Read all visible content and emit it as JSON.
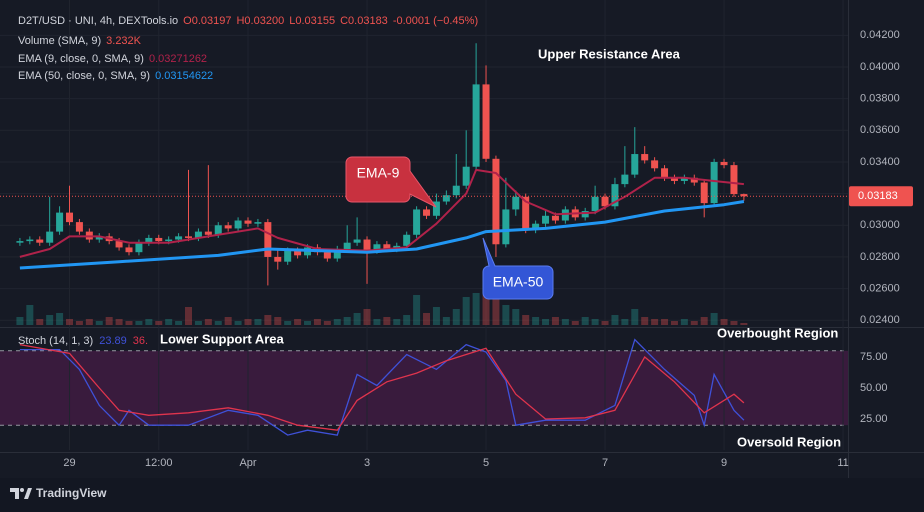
{
  "chart_data": [
    {
      "type": "candlestick",
      "title": "D2T/USD · UNI, 4h, DEXTools.io",
      "ohlc": [
        "O0.03197",
        "H0.03200",
        "L0.03155",
        "C0.03183",
        "-0.0001 (−0.45%)"
      ],
      "up_color": "#26a69a",
      "down_color": "#ef5350",
      "xlim": [
        -6,
        78.5
      ],
      "xticks": [
        {
          "value": 0,
          "label": "29"
        },
        {
          "value": 9,
          "label": "12:00"
        },
        {
          "value": 18,
          "label": "Apr"
        },
        {
          "value": 30,
          "label": "3"
        },
        {
          "value": 42,
          "label": "5"
        },
        {
          "value": 54,
          "label": "7"
        },
        {
          "value": 66,
          "label": "9"
        },
        {
          "value": 78,
          "label": "11"
        }
      ],
      "ylim": [
        0.0237,
        0.0436
      ],
      "yticks": [
        {
          "value": 0.024,
          "label": "0.02400"
        },
        {
          "value": 0.026,
          "label": "0.02600"
        },
        {
          "value": 0.028,
          "label": "0.02800"
        },
        {
          "value": 0.03,
          "label": "0.03000"
        },
        {
          "value": 0.032,
          "label": "0.03200"
        },
        {
          "value": 0.034,
          "label": "0.03400"
        },
        {
          "value": 0.036,
          "label": "0.03600"
        },
        {
          "value": 0.038,
          "label": "0.03800"
        },
        {
          "value": 0.04,
          "label": "0.04000"
        },
        {
          "value": 0.042,
          "label": "0.04200"
        }
      ],
      "grid": true,
      "x": [
        -5,
        -4,
        -3,
        -2,
        -1,
        0,
        1,
        2,
        3,
        4,
        5,
        6,
        7,
        8,
        9,
        10,
        11,
        12,
        13,
        14,
        15,
        16,
        17,
        18,
        19,
        20,
        21,
        22,
        23,
        24,
        25,
        26,
        27,
        28,
        29,
        30,
        31,
        32,
        33,
        34,
        35,
        36,
        37,
        38,
        39,
        40,
        41,
        42,
        43,
        44,
        45,
        46,
        47,
        48,
        49,
        50,
        51,
        52,
        53,
        54,
        55,
        56,
        57,
        58,
        59,
        60,
        61,
        62,
        63,
        64,
        65,
        66,
        67,
        68
      ],
      "open": [
        0.0289,
        0.029,
        0.0291,
        0.0289,
        0.0296,
        0.0308,
        0.0302,
        0.0296,
        0.0291,
        0.0293,
        0.029,
        0.0286,
        0.0283,
        0.0289,
        0.0292,
        0.029,
        0.0291,
        0.0293,
        0.0292,
        0.0296,
        0.0294,
        0.03,
        0.0298,
        0.0303,
        0.0301,
        0.0302,
        0.028,
        0.0277,
        0.0284,
        0.0281,
        0.0286,
        0.0283,
        0.0279,
        0.0285,
        0.0289,
        0.0291,
        0.0284,
        0.0288,
        0.0285,
        0.0287,
        0.0294,
        0.031,
        0.0306,
        0.0315,
        0.0319,
        0.0325,
        0.0337,
        0.0389,
        0.0342,
        0.0288,
        0.031,
        0.0318,
        0.0297,
        0.0301,
        0.0306,
        0.0303,
        0.031,
        0.0305,
        0.0309,
        0.0318,
        0.0312,
        0.0326,
        0.0332,
        0.0345,
        0.0341,
        0.0336,
        0.033,
        0.0328,
        0.033,
        0.0327,
        0.0314,
        0.034,
        0.0338,
        0.03197
      ],
      "high": [
        0.0292,
        0.0293,
        0.0293,
        0.0318,
        0.0312,
        0.0325,
        0.0304,
        0.0298,
        0.0295,
        0.0295,
        0.0292,
        0.0288,
        0.0291,
        0.0294,
        0.0294,
        0.0293,
        0.0295,
        0.0335,
        0.0298,
        0.0338,
        0.0302,
        0.0302,
        0.0305,
        0.0305,
        0.0304,
        0.0304,
        0.0285,
        0.0286,
        0.0286,
        0.0288,
        0.0288,
        0.0285,
        0.0287,
        0.03,
        0.0305,
        0.0293,
        0.029,
        0.029,
        0.0289,
        0.0296,
        0.0312,
        0.0312,
        0.032,
        0.0322,
        0.0345,
        0.036,
        0.0415,
        0.0401,
        0.0344,
        0.033,
        0.0322,
        0.032,
        0.0303,
        0.031,
        0.0308,
        0.0312,
        0.0312,
        0.0311,
        0.0325,
        0.032,
        0.033,
        0.035,
        0.0362,
        0.035,
        0.0343,
        0.0338,
        0.0332,
        0.0332,
        0.0332,
        0.0329,
        0.0342,
        0.0342,
        0.034,
        0.032
      ],
      "low": [
        0.0287,
        0.0288,
        0.0287,
        0.0287,
        0.0294,
        0.03,
        0.0294,
        0.0289,
        0.0289,
        0.0288,
        0.0284,
        0.0281,
        0.0281,
        0.0287,
        0.0288,
        0.0288,
        0.0289,
        0.029,
        0.029,
        0.0292,
        0.0292,
        0.0296,
        0.0296,
        0.0299,
        0.0299,
        0.0262,
        0.0272,
        0.0275,
        0.0279,
        0.0279,
        0.0281,
        0.0277,
        0.0277,
        0.0283,
        0.0287,
        0.0263,
        0.0282,
        0.0283,
        0.0283,
        0.0285,
        0.0292,
        0.0304,
        0.0304,
        0.0313,
        0.0317,
        0.0323,
        0.0335,
        0.034,
        0.028,
        0.0286,
        0.0306,
        0.0295,
        0.0295,
        0.0299,
        0.0301,
        0.0301,
        0.0303,
        0.0303,
        0.0307,
        0.031,
        0.031,
        0.0324,
        0.033,
        0.0339,
        0.0334,
        0.0328,
        0.0326,
        0.0326,
        0.0325,
        0.0305,
        0.0312,
        0.0336,
        0.0318,
        0.03155
      ],
      "close": [
        0.029,
        0.0291,
        0.0289,
        0.0296,
        0.0308,
        0.0302,
        0.0296,
        0.0291,
        0.0293,
        0.029,
        0.0286,
        0.0283,
        0.0289,
        0.0292,
        0.029,
        0.0291,
        0.0293,
        0.0292,
        0.0296,
        0.0294,
        0.03,
        0.0298,
        0.0303,
        0.0301,
        0.0302,
        0.028,
        0.0277,
        0.0284,
        0.0281,
        0.0286,
        0.0283,
        0.0279,
        0.0285,
        0.0289,
        0.0291,
        0.0284,
        0.0288,
        0.0285,
        0.0287,
        0.0294,
        0.031,
        0.0306,
        0.0315,
        0.0319,
        0.0325,
        0.0337,
        0.0389,
        0.0342,
        0.0288,
        0.031,
        0.0318,
        0.0297,
        0.0301,
        0.0306,
        0.0303,
        0.031,
        0.0305,
        0.0309,
        0.0318,
        0.0312,
        0.0326,
        0.0332,
        0.0345,
        0.0341,
        0.0336,
        0.033,
        0.0328,
        0.033,
        0.0327,
        0.0314,
        0.034,
        0.0338,
        0.03197,
        0.03183
      ],
      "volume": {
        "name": "Volume (SMA, 9)",
        "value_label": "3.232K",
        "ylim": [
          0,
          40
        ],
        "values": [
          4,
          10,
          3,
          5,
          6,
          3,
          2,
          3,
          2,
          4,
          3,
          2,
          2,
          3,
          2,
          3,
          2,
          9,
          2,
          3,
          2,
          4,
          2,
          3,
          3,
          5,
          4,
          2,
          3,
          2,
          3,
          2,
          3,
          4,
          6,
          8,
          3,
          4,
          3,
          5,
          15,
          6,
          9,
          4,
          8,
          14,
          16,
          15,
          13,
          10,
          8,
          5,
          4,
          3,
          4,
          3,
          2,
          4,
          3,
          2,
          5,
          3,
          8,
          4,
          3,
          3,
          2,
          3,
          2,
          4,
          6,
          3,
          2,
          1
        ]
      },
      "series": [
        {
          "name": "EMA (9, close, 0, SMA, 9)",
          "value_label": "0.03271262",
          "color": "#b0224a",
          "x": [
            -5,
            -2,
            0,
            3,
            6,
            10,
            14,
            19,
            21,
            25,
            30,
            34,
            37,
            40,
            41,
            43,
            46,
            49,
            53,
            56,
            59,
            62,
            65,
            68
          ],
          "values": [
            0.028,
            0.0285,
            0.0293,
            0.0293,
            0.0289,
            0.0289,
            0.0293,
            0.0298,
            0.0292,
            0.0285,
            0.0284,
            0.0286,
            0.0301,
            0.032,
            0.0335,
            0.0333,
            0.0315,
            0.0307,
            0.0308,
            0.0318,
            0.033,
            0.033,
            0.0328,
            0.0326
          ]
        },
        {
          "name": "EMA (50, close, 0, SMA, 9)",
          "value_label": "0.03154622",
          "color": "#2196f3",
          "x": [
            -5,
            5,
            15,
            20,
            25,
            30,
            35,
            40,
            42,
            48,
            54,
            60,
            66,
            68
          ],
          "values": [
            0.0273,
            0.0277,
            0.0281,
            0.0285,
            0.0284,
            0.0283,
            0.0285,
            0.0292,
            0.0296,
            0.0298,
            0.0302,
            0.0309,
            0.0313,
            0.0315
          ]
        }
      ],
      "last_price": {
        "value": 0.03183,
        "label": "0.03183"
      },
      "annotations": [
        "Upper Resistance Area",
        "EMA-9",
        "EMA-50"
      ]
    },
    {
      "type": "line",
      "title": "Stoch (14, 1, 3)",
      "ylim": [
        0,
        100
      ],
      "yticks": [
        {
          "value": 25,
          "label": "25.00"
        },
        {
          "value": 50,
          "label": "50.00"
        },
        {
          "value": 75,
          "label": "75.00"
        }
      ],
      "bands": [
        80,
        20
      ],
      "series": [
        {
          "value_label": "23.89",
          "color": "#3f51d8",
          "x": [
            -5,
            -1,
            1,
            3,
            5,
            6,
            8,
            12,
            16,
            19,
            22,
            24,
            27,
            29,
            31,
            34,
            37,
            40,
            42,
            44,
            45,
            48,
            52,
            55,
            57,
            60,
            63,
            64,
            65,
            67,
            68
          ],
          "values": [
            81,
            81,
            65,
            36,
            20,
            32,
            20,
            20,
            32,
            28,
            12,
            16,
            12,
            61,
            52,
            77,
            65,
            85,
            79,
            56,
            20,
            24,
            24,
            36,
            89,
            65,
            44,
            20,
            61,
            32,
            24
          ]
        },
        {
          "value_label": "36.",
          "color": "#e0344d",
          "x": [
            -5,
            0,
            3,
            5,
            8,
            12,
            16,
            20,
            23,
            27,
            29,
            32,
            35,
            38,
            42,
            45,
            48,
            52,
            55,
            58,
            61,
            64,
            67,
            68
          ],
          "values": [
            85,
            78,
            50,
            32,
            28,
            30,
            34,
            28,
            20,
            16,
            40,
            55,
            62,
            72,
            82,
            45,
            25,
            26,
            32,
            75,
            55,
            30,
            45,
            38
          ]
        }
      ],
      "annotations": [
        "Lower Support Area",
        "Overbought Region",
        "Oversold Region"
      ]
    }
  ],
  "footer": "TradingView"
}
